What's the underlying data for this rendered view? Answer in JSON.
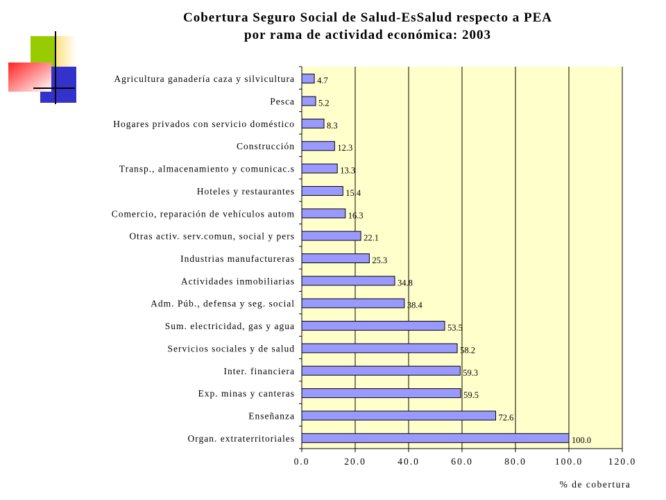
{
  "chart_data": {
    "type": "bar",
    "orientation": "horizontal",
    "title": "Cobertura Seguro Social de Salud-EsSalud respecto a PEA",
    "subtitle": "por rama de actividad económica: 2003",
    "xlabel": "% de cobertura",
    "ylabel": "",
    "xlim": [
      0,
      120
    ],
    "x_ticks": [
      "0.0",
      "20.0",
      "40.0",
      "60.0",
      "80.0",
      "100.0",
      "120.0"
    ],
    "grid": "vertical",
    "legend": "none",
    "categories": [
      "Agricultura ganadería caza y silvicultura",
      "Pesca",
      "Hogares privados con servicio doméstico",
      "Construcción",
      "Transp., almacenamiento y comunicac.s",
      "Hoteles y restaurantes",
      "Comercio, reparación de vehículos autom",
      "Otras activ. serv.comun, social y pers",
      "Industrias manufactureras",
      "Actividades inmobiliarias",
      "Adm. Púb., defensa y seg. social",
      "Sum. electricidad, gas y agua",
      "Servicios sociales y de salud",
      "Inter. financiera",
      "Exp. minas y canteras",
      "Enseñanza",
      "Organ. extraterritoriales"
    ],
    "values": [
      4.7,
      5.2,
      8.3,
      12.3,
      13.3,
      15.4,
      16.3,
      22.1,
      25.3,
      34.8,
      38.4,
      53.5,
      58.2,
      59.3,
      59.5,
      72.6,
      100.0
    ],
    "value_labels": [
      "4.7",
      "5.2",
      "8.3",
      "12.3",
      "13.3",
      "15.4",
      "16.3",
      "22.1",
      "25.3",
      "34.8",
      "38.4",
      "53.5",
      "58.2",
      "59.3",
      "59.5",
      "72.6",
      "100.0"
    ],
    "colors": {
      "bar_fill": "#9999ff",
      "bar_stroke": "#000000",
      "plot_background": "#ffffcc",
      "grid": "#000000"
    }
  },
  "logo": {
    "colors": {
      "yellow": "#ffcc33",
      "green": "#99cc00",
      "blue": "#3333cc",
      "red": "#ff3333"
    }
  }
}
